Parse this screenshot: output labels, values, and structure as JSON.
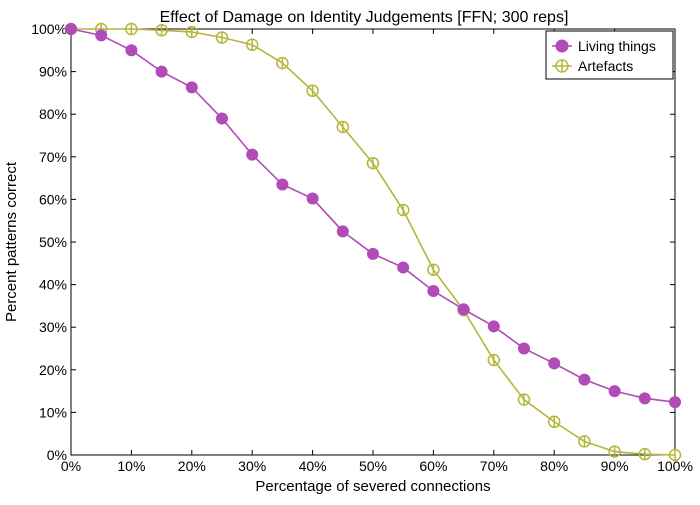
{
  "chart_data": {
    "type": "line",
    "title": "Effect of Damage on Identity Judgements [FFN; 300 reps]",
    "xlabel": "Percentage of severed connections",
    "ylabel": "Percent patterns correct",
    "xlim": [
      0,
      100
    ],
    "ylim": [
      0,
      100
    ],
    "x": [
      0,
      5,
      10,
      15,
      20,
      25,
      30,
      35,
      40,
      45,
      50,
      55,
      60,
      65,
      70,
      75,
      80,
      85,
      90,
      95,
      100
    ],
    "x_ticks": [
      0,
      10,
      20,
      30,
      40,
      50,
      60,
      70,
      80,
      90,
      100
    ],
    "x_tick_labels": [
      "0%",
      "10%",
      "20%",
      "30%",
      "40%",
      "50%",
      "60%",
      "70%",
      "80%",
      "90%",
      "100%"
    ],
    "y_ticks": [
      0,
      10,
      20,
      30,
      40,
      50,
      60,
      70,
      80,
      90,
      100
    ],
    "y_tick_labels": [
      "0%",
      "10%",
      "20%",
      "30%",
      "40%",
      "50%",
      "60%",
      "70%",
      "80%",
      "90%",
      "100%"
    ],
    "grid": false,
    "legend_position": "top-right",
    "series": [
      {
        "name": "Living things",
        "color": "#b04bb8",
        "marker": "filled-circle",
        "values": [
          100,
          98.5,
          95,
          90,
          86.3,
          79,
          70.5,
          63.5,
          60.2,
          52.5,
          47.2,
          44,
          38.5,
          34.2,
          30.2,
          25,
          21.5,
          17.7,
          15,
          13.3,
          12.4
        ]
      },
      {
        "name": "Artefacts",
        "color": "#b5b53c",
        "marker": "open-circle-bar",
        "values": [
          100,
          100,
          100,
          99.7,
          99.3,
          98,
          96.3,
          92,
          85.5,
          77,
          68.5,
          57.5,
          43.5,
          34,
          22.3,
          13,
          7.8,
          3.2,
          0.8,
          0.2,
          0
        ]
      }
    ]
  }
}
